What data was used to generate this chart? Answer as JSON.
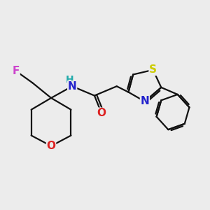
{
  "bg_color": "#ececec",
  "line_color": "#111111",
  "line_width": 1.6,
  "font_size": 11,
  "fig_size": [
    3.0,
    3.0
  ],
  "dpi": 100,
  "colors": {
    "F": "#cc44cc",
    "N": "#2222cc",
    "H": "#22aaaa",
    "O": "#dd2222",
    "S": "#cccc00",
    "C": "#111111"
  }
}
